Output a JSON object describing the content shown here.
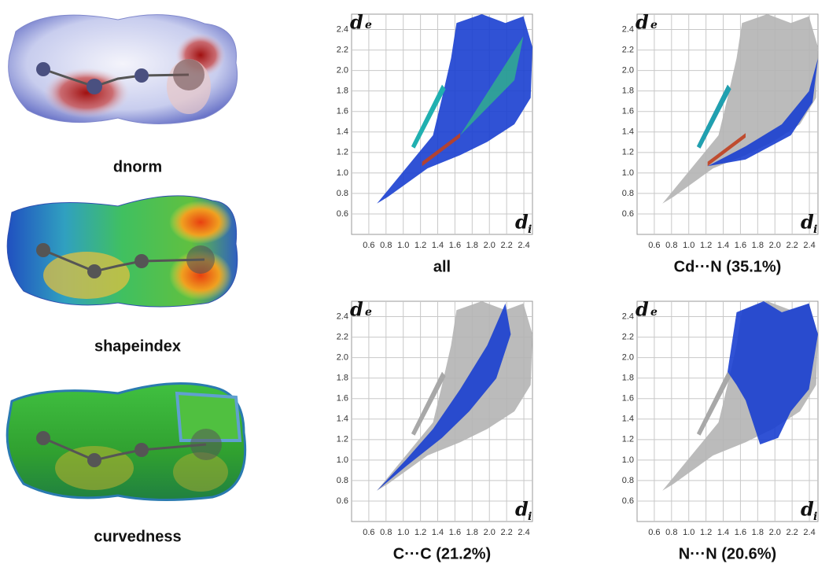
{
  "surfaces": [
    {
      "label": "dnorm"
    },
    {
      "label": "shapeindex"
    },
    {
      "label": "curvedness"
    }
  ],
  "plots": [
    {
      "title": "all",
      "x_label": "d",
      "x_subscript": "i",
      "y_label": "d",
      "y_subscript": "e",
      "xlim": [
        0.4,
        2.5
      ],
      "ylim": [
        0.4,
        2.55
      ],
      "xticks": [
        0.6,
        0.8,
        {
          "value": 1,
          "label": "1.0"
        },
        1.2,
        1.4,
        1.6,
        1.8,
        {
          "value": 2,
          "label": "2.0"
        },
        2.2,
        2.4
      ],
      "yticks": [
        0.6,
        0.8,
        {
          "value": 1,
          "label": "1.0"
        },
        1.2,
        1.4,
        1.6,
        1.8,
        {
          "value": 2,
          "label": "2.0"
        },
        2.2,
        2.4
      ]
    },
    {
      "title": "Cd···N (35.1%)",
      "x_label": "d",
      "x_subscript": "i",
      "y_label": "d",
      "y_subscript": "e",
      "xlim": [
        0.4,
        2.5
      ],
      "ylim": [
        0.4,
        2.55
      ],
      "xticks": [
        0.6,
        0.8,
        {
          "value": 1,
          "label": "1.0"
        },
        1.2,
        1.4,
        1.6,
        1.8,
        {
          "value": 2,
          "label": "2.0"
        },
        2.2,
        2.4
      ],
      "yticks": [
        0.6,
        0.8,
        {
          "value": 1,
          "label": "1.0"
        },
        1.2,
        1.4,
        1.6,
        1.8,
        {
          "value": 2,
          "label": "2.0"
        },
        2.2,
        2.4
      ]
    },
    {
      "title": "C···C (21.2%)",
      "x_label": "d",
      "x_subscript": "i",
      "y_label": "d",
      "y_subscript": "e",
      "xlim": [
        0.4,
        2.5
      ],
      "ylim": [
        0.4,
        2.55
      ],
      "xticks": [
        0.6,
        0.8,
        {
          "value": 1,
          "label": "1.0"
        },
        1.2,
        1.4,
        1.6,
        1.8,
        {
          "value": 2,
          "label": "2.0"
        },
        2.2,
        2.4
      ],
      "yticks": [
        0.6,
        0.8,
        {
          "value": 1,
          "label": "1.0"
        },
        1.2,
        1.4,
        1.6,
        1.8,
        {
          "value": 2,
          "label": "2.0"
        },
        2.2,
        2.4
      ]
    },
    {
      "title": "N···N (20.6%)",
      "x_label": "d",
      "x_subscript": "i",
      "y_label": "d",
      "y_subscript": "e",
      "xlim": [
        0.4,
        2.5
      ],
      "ylim": [
        0.4,
        2.55
      ],
      "xticks": [
        0.6,
        0.8,
        {
          "value": 1,
          "label": "1.0"
        },
        1.2,
        1.4,
        1.6,
        1.8,
        {
          "value": 2,
          "label": "2.0"
        },
        2.2,
        2.4
      ],
      "yticks": [
        0.6,
        0.8,
        {
          "value": 1,
          "label": "1.0"
        },
        1.2,
        1.4,
        1.6,
        1.8,
        {
          "value": 2,
          "label": "2.0"
        },
        2.2,
        2.4
      ]
    }
  ]
}
